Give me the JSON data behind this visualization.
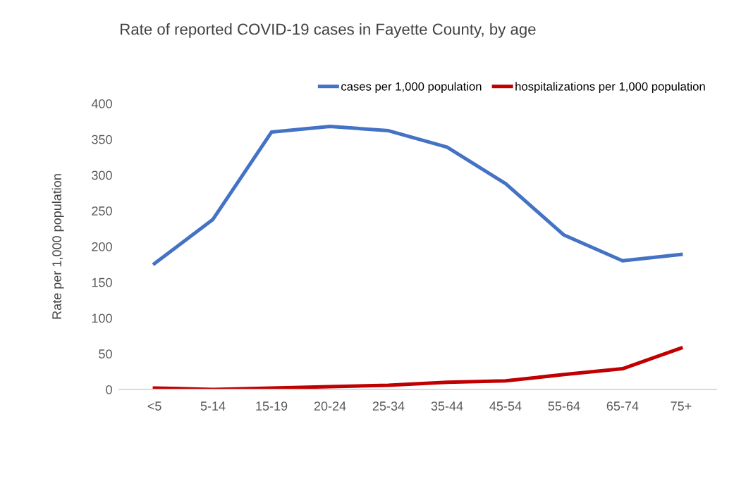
{
  "chart_data": {
    "type": "line",
    "title": "Rate of reported COVID-19 cases in Fayette County, by age",
    "ylabel": "Rate per 1,000 population",
    "categories": [
      "<5",
      "5-14",
      "15-19",
      "20-24",
      "25-34",
      "35-44",
      "45-54",
      "55-64",
      "65-74",
      "75+"
    ],
    "series": [
      {
        "name": "cases per 1,000 population",
        "color": "#4472c4",
        "values": [
          176,
          238,
          360,
          368,
          362,
          339,
          288,
          216,
          180,
          189
        ]
      },
      {
        "name": "hospitalizations per 1,000 population",
        "color": "#c00000",
        "values": [
          2,
          0,
          2,
          4,
          6,
          10,
          12,
          21,
          29,
          58
        ]
      }
    ],
    "ylim": [
      0,
      400
    ],
    "yticks": [
      0,
      50,
      100,
      150,
      200,
      250,
      300,
      350,
      400
    ],
    "grid": false,
    "legend": "top right",
    "marker": "none",
    "line_style": "solid"
  }
}
